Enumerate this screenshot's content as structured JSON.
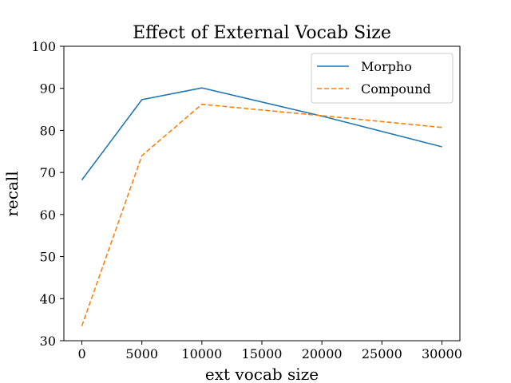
{
  "chart_data": {
    "type": "line",
    "title": "Effect of External Vocab Size",
    "xlabel": "ext vocab size",
    "ylabel": "recall",
    "x": [
      0,
      5000,
      10000,
      20000,
      30000
    ],
    "xlim": [
      -1500,
      31500
    ],
    "ylim": [
      30,
      100
    ],
    "xticks": [
      0,
      5000,
      10000,
      15000,
      20000,
      25000,
      30000
    ],
    "yticks": [
      30,
      40,
      50,
      60,
      70,
      80,
      90,
      100
    ],
    "legend_position": "top-right",
    "series": [
      {
        "name": "Morpho",
        "values": [
          68.2,
          87.3,
          90.1,
          83.4,
          76.1
        ],
        "color": "#1f77b4",
        "style": "solid"
      },
      {
        "name": "Compound",
        "values": [
          33.5,
          74.0,
          86.2,
          83.5,
          80.7
        ],
        "color": "#ff7f0e",
        "style": "dashed"
      }
    ]
  }
}
